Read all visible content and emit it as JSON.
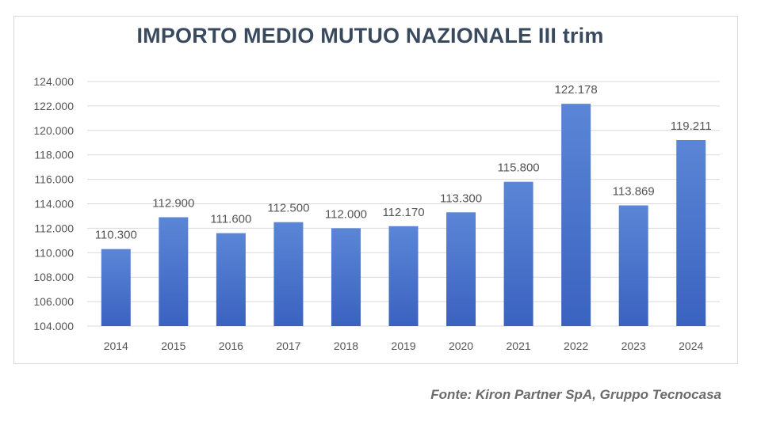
{
  "chart_data": {
    "type": "bar",
    "title": "IMPORTO MEDIO MUTUO NAZIONALE III trim",
    "xlabel": "",
    "ylabel": "",
    "categories": [
      "2014",
      "2015",
      "2016",
      "2017",
      "2018",
      "2019",
      "2020",
      "2021",
      "2022",
      "2023",
      "2024"
    ],
    "values": [
      110300,
      112900,
      111600,
      112500,
      112000,
      112170,
      113300,
      115800,
      122178,
      113869,
      119211
    ],
    "value_labels": [
      "110.300",
      "112.900",
      "111.600",
      "112.500",
      "112.000",
      "112.170",
      "113.300",
      "115.800",
      "122.178",
      "113.869",
      "119.211"
    ],
    "ylim": [
      104000,
      124000
    ],
    "yticks": [
      104000,
      106000,
      108000,
      110000,
      112000,
      114000,
      116000,
      118000,
      120000,
      122000,
      124000
    ],
    "ytick_labels": [
      "104.000",
      "106.000",
      "108.000",
      "110.000",
      "112.000",
      "114.000",
      "116.000",
      "118.000",
      "120.000",
      "122.000",
      "124.000"
    ],
    "grid": true,
    "legend": "none",
    "bar_color_top": "#5b86d6",
    "bar_color_bottom": "#3a62c0"
  },
  "source": "Fonte: Kiron Partner SpA, Gruppo Tecnocasa"
}
